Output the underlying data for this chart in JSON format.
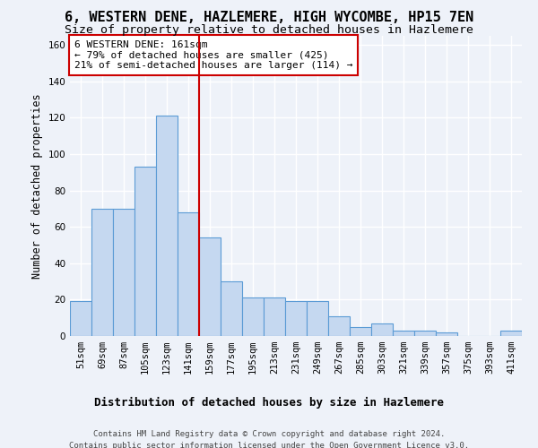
{
  "title": "6, WESTERN DENE, HAZLEMERE, HIGH WYCOMBE, HP15 7EN",
  "subtitle": "Size of property relative to detached houses in Hazlemere",
  "xlabel": "Distribution of detached houses by size in Hazlemere",
  "ylabel": "Number of detached properties",
  "categories": [
    "51sqm",
    "69sqm",
    "87sqm",
    "105sqm",
    "123sqm",
    "141sqm",
    "159sqm",
    "177sqm",
    "195sqm",
    "213sqm",
    "231sqm",
    "249sqm",
    "267sqm",
    "285sqm",
    "303sqm",
    "321sqm",
    "339sqm",
    "357sqm",
    "375sqm",
    "393sqm",
    "411sqm"
  ],
  "values": [
    19,
    70,
    70,
    93,
    121,
    68,
    54,
    30,
    21,
    21,
    19,
    19,
    11,
    5,
    7,
    3,
    3,
    2,
    0,
    0,
    3
  ],
  "bar_color": "#c5d8f0",
  "bar_edge_color": "#5b9bd5",
  "vline_color": "#cc0000",
  "annotation_text": "6 WESTERN DENE: 161sqm\n← 79% of detached houses are smaller (425)\n21% of semi-detached houses are larger (114) →",
  "annotation_box_color": "#ffffff",
  "annotation_box_edge": "#cc0000",
  "ylim": [
    0,
    165
  ],
  "yticks": [
    0,
    20,
    40,
    60,
    80,
    100,
    120,
    140,
    160
  ],
  "footer": "Contains HM Land Registry data © Crown copyright and database right 2024.\nContains public sector information licensed under the Open Government Licence v3.0.",
  "background_color": "#eef2f9",
  "grid_color": "#ffffff",
  "title_fontsize": 11,
  "subtitle_fontsize": 9.5,
  "xlabel_fontsize": 9,
  "ylabel_fontsize": 8.5,
  "tick_fontsize": 7.5,
  "annotation_fontsize": 8,
  "footer_fontsize": 6.5
}
